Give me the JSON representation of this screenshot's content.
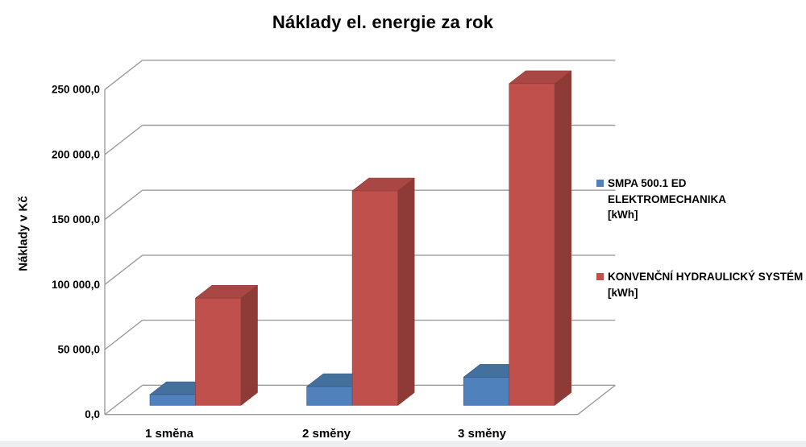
{
  "chart_data": {
    "type": "bar",
    "style": "3d-column",
    "title": "Náklady el. energie za rok",
    "ylabel": "Náklady v Kč",
    "xlabel": "",
    "categories": [
      "1 směna",
      "2 směny",
      "3 směny"
    ],
    "series": [
      {
        "name": "SMPA 500.1 ED ELEKTROMECHANIKA [kWh]",
        "color": "#4F81BD",
        "values": [
          8250,
          14450,
          21700
        ]
      },
      {
        "name": "KONVENČNÍ HYDRAULICKÝ SYSTÉM [kWh]",
        "color": "#C0504D",
        "values": [
          82500,
          165000,
          247500
        ]
      }
    ],
    "ylim": [
      0,
      250000
    ],
    "ytick_interval": 50000,
    "ytick_labels": [
      "0,0",
      "50 000,0",
      "100 000,0",
      "150 000,0",
      "200 000,0",
      "250 000,0"
    ],
    "grid": true,
    "legend_position": "right"
  },
  "legend": {
    "entries": [
      {
        "lines": [
          "SMPA 500.1 ED",
          "ELEKTROMECHANIKA",
          "[kWh]"
        ],
        "color": "#4F81BD"
      },
      {
        "lines": [
          "KONVENČNÍ HYDRAULICKÝ SYSTÉM",
          "[kWh]"
        ],
        "color": "#C0504D"
      }
    ]
  },
  "colors": {
    "gridline": "#9C9C9C",
    "text": "#000000",
    "series_faces": [
      {
        "front": "#4F81BD",
        "top": "#44709D",
        "side": "#36587E"
      },
      {
        "front": "#BF504C",
        "top": "#A84743",
        "side": "#8E3A37"
      }
    ]
  }
}
